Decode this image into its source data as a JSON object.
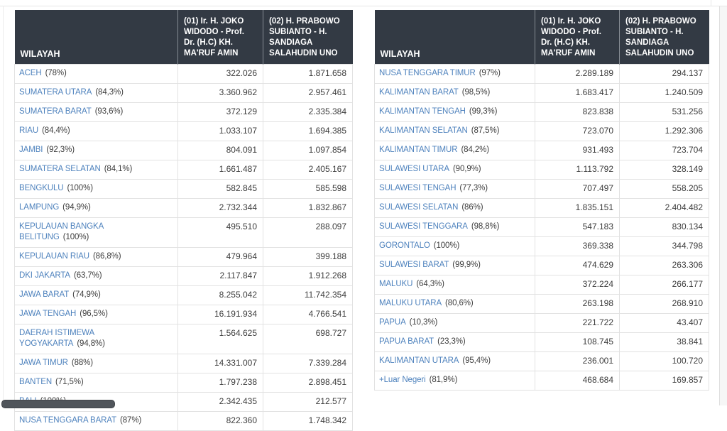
{
  "headers": {
    "wilayah": "WILAYAH",
    "candidate_01": "(01) Ir. H. JOKO WIDODO - Prof. Dr. (H.C) KH. MA'RUF AMIN",
    "candidate_02": "(02) H. PRABOWO SUBIANTO - H. SANDIAGA SALAHUDIN UNO"
  },
  "left_table": {
    "rows": [
      {
        "region": "ACEH",
        "coverage": "(78%)",
        "paslon_01": "322.026",
        "paslon_02": "1.871.658"
      },
      {
        "region": "SUMATERA UTARA",
        "coverage": "(84,3%)",
        "paslon_01": "3.360.962",
        "paslon_02": "2.957.461"
      },
      {
        "region": "SUMATERA BARAT",
        "coverage": "(93,6%)",
        "paslon_01": "372.129",
        "paslon_02": "2.335.384"
      },
      {
        "region": "RIAU",
        "coverage": "(84,4%)",
        "paslon_01": "1.033.107",
        "paslon_02": "1.694.385"
      },
      {
        "region": "JAMBI",
        "coverage": "(92,3%)",
        "paslon_01": "804.091",
        "paslon_02": "1.097.854"
      },
      {
        "region": "SUMATERA SELATAN",
        "coverage": "(84,1%)",
        "paslon_01": "1.661.487",
        "paslon_02": "2.405.167"
      },
      {
        "region": "BENGKULU",
        "coverage": "(100%)",
        "paslon_01": "582.845",
        "paslon_02": "585.598"
      },
      {
        "region": "LAMPUNG",
        "coverage": "(94,9%)",
        "paslon_01": "2.732.344",
        "paslon_02": "1.832.867"
      },
      {
        "region": "KEPULAUAN BANGKA BELITUNG",
        "coverage": "(100%)",
        "paslon_01": "495.510",
        "paslon_02": "288.097"
      },
      {
        "region": "KEPULAUAN RIAU",
        "coverage": "(86,8%)",
        "paslon_01": "479.964",
        "paslon_02": "399.188"
      },
      {
        "region": "DKI JAKARTA",
        "coverage": "(63,7%)",
        "paslon_01": "2.117.847",
        "paslon_02": "1.912.268"
      },
      {
        "region": "JAWA BARAT",
        "coverage": "(74,9%)",
        "paslon_01": "8.255.042",
        "paslon_02": "11.742.354"
      },
      {
        "region": "JAWA TENGAH",
        "coverage": "(96,5%)",
        "paslon_01": "16.191.934",
        "paslon_02": "4.766.541"
      },
      {
        "region": "DAERAH ISTIMEWA YOGYAKARTA",
        "coverage": "(94,8%)",
        "paslon_01": "1.564.625",
        "paslon_02": "698.727"
      },
      {
        "region": "JAWA TIMUR",
        "coverage": "(88%)",
        "paslon_01": "14.331.007",
        "paslon_02": "7.339.284"
      },
      {
        "region": "BANTEN",
        "coverage": "(71,5%)",
        "paslon_01": "1.797.238",
        "paslon_02": "2.898.451"
      },
      {
        "region": "BALI",
        "coverage": "(100%)",
        "paslon_01": "2.342.435",
        "paslon_02": "212.577"
      },
      {
        "region": "NUSA TENGGARA BARAT",
        "coverage": "(87%)",
        "paslon_01": "822.360",
        "paslon_02": "1.748.342"
      }
    ]
  },
  "right_table": {
    "rows": [
      {
        "region": "NUSA TENGGARA TIMUR",
        "coverage": "(97%)",
        "paslon_01": "2.289.189",
        "paslon_02": "294.137"
      },
      {
        "region": "KALIMANTAN BARAT",
        "coverage": "(98,5%)",
        "paslon_01": "1.683.417",
        "paslon_02": "1.240.509"
      },
      {
        "region": "KALIMANTAN TENGAH",
        "coverage": "(99,3%)",
        "paslon_01": "823.838",
        "paslon_02": "531.256"
      },
      {
        "region": "KALIMANTAN SELATAN",
        "coverage": "(87,5%)",
        "paslon_01": "723.070",
        "paslon_02": "1.292.306"
      },
      {
        "region": "KALIMANTAN TIMUR",
        "coverage": "(84,2%)",
        "paslon_01": "931.493",
        "paslon_02": "723.704"
      },
      {
        "region": "SULAWESI UTARA",
        "coverage": "(90,9%)",
        "paslon_01": "1.113.792",
        "paslon_02": "328.149"
      },
      {
        "region": "SULAWESI TENGAH",
        "coverage": "(77,3%)",
        "paslon_01": "707.497",
        "paslon_02": "558.205"
      },
      {
        "region": "SULAWESI SELATAN",
        "coverage": "(86%)",
        "paslon_01": "1.835.151",
        "paslon_02": "2.404.482"
      },
      {
        "region": "SULAWESI TENGGARA",
        "coverage": "(98,8%)",
        "paslon_01": "547.183",
        "paslon_02": "830.134"
      },
      {
        "region": "GORONTALO",
        "coverage": "(100%)",
        "paslon_01": "369.338",
        "paslon_02": "344.798"
      },
      {
        "region": "SULAWESI BARAT",
        "coverage": "(99,9%)",
        "paslon_01": "474.629",
        "paslon_02": "263.306"
      },
      {
        "region": "MALUKU",
        "coverage": "(64,3%)",
        "paslon_01": "372.224",
        "paslon_02": "266.177"
      },
      {
        "region": "MALUKU UTARA",
        "coverage": "(80,6%)",
        "paslon_01": "263.198",
        "paslon_02": "268.910"
      },
      {
        "region": "PAPUA",
        "coverage": "(10,3%)",
        "paslon_01": "221.722",
        "paslon_02": "43.407"
      },
      {
        "region": "PAPUA BARAT",
        "coverage": "(23,3%)",
        "paslon_01": "108.745",
        "paslon_02": "38.841"
      },
      {
        "region": "KALIMANTAN UTARA",
        "coverage": "(95,4%)",
        "paslon_01": "236.001",
        "paslon_02": "100.720"
      },
      {
        "region": "+Luar Negeri",
        "coverage": "(81,9%)",
        "paslon_01": "468.684",
        "paslon_02": "169.857"
      }
    ]
  },
  "colors": {
    "header_bg": "#333a44",
    "header_text": "#ffffff",
    "region_link": "#4e82bd",
    "body_text": "#3d3d3d",
    "grid_border": "#e2e2e2",
    "scrollbar_thumb": "#50555b"
  }
}
